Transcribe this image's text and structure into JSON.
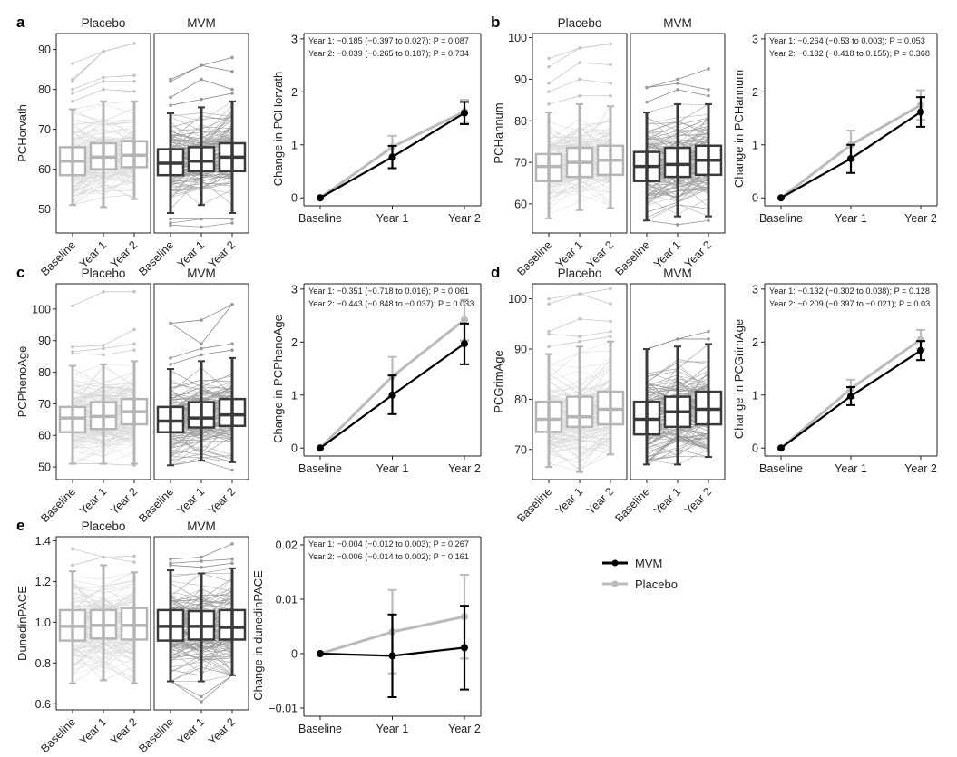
{
  "colors": {
    "mvm": "#000000",
    "placebo": "#bbbbbb",
    "mvm_box": "#3a3a3a",
    "placebo_box": "#b5b5b5"
  },
  "legend": [
    {
      "label": "MVM",
      "color": "#000000"
    },
    {
      "label": "Placebo",
      "color": "#bbbbbb"
    }
  ],
  "chart_data": [
    {
      "panel": "a",
      "type": "box",
      "ylabel": "PCHorvath",
      "groups": [
        "Placebo",
        "MVM"
      ],
      "categories": [
        "Baseline",
        "Year 1",
        "Year 2"
      ],
      "yticks": [
        50,
        60,
        70,
        80,
        90
      ],
      "ylim": [
        44,
        94
      ],
      "boxes": {
        "Placebo": [
          {
            "q1": 58.5,
            "median": 62,
            "q3": 65.5,
            "lo": 51,
            "hi": 75,
            "outliers_hi": [
              77,
              79,
              80,
              82,
              82.5,
              86.5
            ]
          },
          {
            "q1": 60,
            "median": 63,
            "q3": 66.5,
            "lo": 50.5,
            "hi": 77,
            "outliers_hi": [
              80,
              82,
              83,
              89.5
            ]
          },
          {
            "q1": 60.5,
            "median": 63.5,
            "q3": 67,
            "lo": 52.5,
            "hi": 77,
            "outliers_hi": [
              79.5,
              82,
              83.5,
              91.5
            ]
          }
        ],
        "MVM": [
          {
            "q1": 58.5,
            "median": 61.5,
            "q3": 65,
            "lo": 49,
            "hi": 74,
            "outliers_hi": [
              76,
              78,
              82,
              82.5
            ],
            "outliers_lo": [
              46,
              46.5,
              47.5
            ]
          },
          {
            "q1": 59.5,
            "median": 62,
            "q3": 65.5,
            "lo": 51,
            "hi": 75.5,
            "outliers_hi": [
              77.5,
              82.5,
              86
            ],
            "outliers_lo": [
              45.5,
              47.5
            ]
          },
          {
            "q1": 59.5,
            "median": 63,
            "q3": 66.5,
            "lo": 49,
            "hi": 77,
            "outliers_hi": [
              79,
              80,
              84.5,
              88
            ],
            "outliers_lo": [
              46.5,
              47.5
            ]
          }
        ]
      }
    },
    {
      "panel": "a",
      "type": "line",
      "ylabel": "Change in PCHorvath",
      "categories": [
        "Baseline",
        "Year 1",
        "Year 2"
      ],
      "yticks": [
        0,
        1,
        2,
        3
      ],
      "ylim": [
        -0.15,
        3.1
      ],
      "annotations": [
        "Year 1: −0.185 (−0.397 to 0.027); P = 0.087",
        "Year 2: −0.039 (−0.265 to 0.187); P = 0.734"
      ],
      "series": [
        {
          "name": "Placebo",
          "values": [
            0,
            0.96,
            1.63
          ],
          "err_lo": [
            0,
            0.75,
            1.41
          ],
          "err_hi": [
            0,
            1.17,
            1.85
          ]
        },
        {
          "name": "MVM",
          "values": [
            0,
            0.77,
            1.6
          ],
          "err_lo": [
            0,
            0.56,
            1.39
          ],
          "err_hi": [
            0,
            0.98,
            1.81
          ]
        }
      ]
    },
    {
      "panel": "b",
      "type": "box",
      "ylabel": "PCHannum",
      "groups": [
        "Placebo",
        "MVM"
      ],
      "categories": [
        "Baseline",
        "Year 1",
        "Year 2"
      ],
      "yticks": [
        60,
        70,
        80,
        90,
        100
      ],
      "ylim": [
        53,
        101
      ],
      "boxes": {
        "Placebo": [
          {
            "q1": 65.5,
            "median": 69,
            "q3": 72,
            "lo": 56.5,
            "hi": 82,
            "outliers_hi": [
              84,
              87,
              89,
              93,
              95
            ]
          },
          {
            "q1": 66.5,
            "median": 70,
            "q3": 73.5,
            "lo": 58.5,
            "hi": 84,
            "outliers_hi": [
              86,
              90,
              94,
              97.5
            ]
          },
          {
            "q1": 67,
            "median": 70.5,
            "q3": 74,
            "lo": 59,
            "hi": 83.5,
            "outliers_hi": [
              86,
              89,
              93.5,
              98.5
            ]
          }
        ],
        "MVM": [
          {
            "q1": 65.5,
            "median": 69,
            "q3": 72.5,
            "lo": 56,
            "hi": 82,
            "outliers_hi": [
              84.5,
              88
            ]
          },
          {
            "q1": 66.5,
            "median": 69.5,
            "q3": 73.5,
            "lo": 57,
            "hi": 84,
            "outliers_hi": [
              87.5,
              89,
              90
            ],
            "outliers_lo": [
              55
            ]
          },
          {
            "q1": 67,
            "median": 70.5,
            "q3": 74,
            "lo": 57,
            "hi": 84,
            "outliers_hi": [
              86,
              87.5,
              92.5
            ],
            "outliers_lo": [
              56
            ]
          }
        ]
      }
    },
    {
      "panel": "b",
      "type": "line",
      "ylabel": "Change in PCHannum",
      "categories": [
        "Baseline",
        "Year 1",
        "Year 2"
      ],
      "yticks": [
        0,
        1,
        2,
        3
      ],
      "ylim": [
        -0.15,
        3.1
      ],
      "annotations": [
        "Year 1: −0.264 (−0.53 to 0.003); P = 0.053",
        "Year 2: −0.132 (−0.418 to 0.155); P = 0.368"
      ],
      "series": [
        {
          "name": "Placebo",
          "values": [
            0,
            1.0,
            1.75
          ],
          "err_lo": [
            0,
            0.73,
            1.47
          ],
          "err_hi": [
            0,
            1.27,
            2.03
          ]
        },
        {
          "name": "MVM",
          "values": [
            0,
            0.74,
            1.62
          ],
          "err_lo": [
            0,
            0.47,
            1.34
          ],
          "err_hi": [
            0,
            1.0,
            1.9
          ]
        }
      ]
    },
    {
      "panel": "c",
      "type": "box",
      "ylabel": "PCPhenoAge",
      "groups": [
        "Placebo",
        "MVM"
      ],
      "categories": [
        "Baseline",
        "Year 1",
        "Year 2"
      ],
      "yticks": [
        50,
        60,
        70,
        80,
        90,
        100
      ],
      "ylim": [
        46,
        108
      ],
      "boxes": {
        "Placebo": [
          {
            "q1": 61,
            "median": 65.5,
            "q3": 69,
            "lo": 51,
            "hi": 82,
            "outliers_hi": [
              86,
              86.5,
              88,
              101
            ]
          },
          {
            "q1": 62,
            "median": 66,
            "q3": 70.5,
            "lo": 51,
            "hi": 82.5,
            "outliers_hi": [
              85.5,
              87.5,
              88.5,
              105.5
            ]
          },
          {
            "q1": 63.5,
            "median": 67.5,
            "q3": 71.5,
            "lo": 51,
            "hi": 83.5,
            "outliers_hi": [
              87,
              89,
              93.5,
              105.5
            ],
            "outliers_lo": [
              50.5
            ]
          }
        ],
        "MVM": [
          {
            "q1": 61,
            "median": 64.5,
            "q3": 69,
            "lo": 50.5,
            "hi": 81,
            "outliers_hi": [
              82.5,
              84.5,
              95.5
            ]
          },
          {
            "q1": 62.5,
            "median": 65.5,
            "q3": 70.5,
            "lo": 52,
            "hi": 83.5,
            "outliers_hi": [
              85.5,
              87.5,
              89,
              96.5
            ]
          },
          {
            "q1": 63,
            "median": 66.5,
            "q3": 71.5,
            "lo": 51.5,
            "hi": 84.5,
            "outliers_hi": [
              87,
              89,
              101.5
            ],
            "outliers_lo": [
              49
            ]
          }
        ]
      }
    },
    {
      "panel": "c",
      "type": "line",
      "ylabel": "Change in PCPhenoAge",
      "categories": [
        "Baseline",
        "Year 1",
        "Year 2"
      ],
      "yticks": [
        0,
        1,
        2,
        3
      ],
      "ylim": [
        -0.15,
        3.1
      ],
      "annotations": [
        "Year 1: −0.351 (−0.718 to 0.016); P = 0.061",
        "Year 2: −0.443 (−0.848 to −0.037); P = 0.033"
      ],
      "series": [
        {
          "name": "Placebo",
          "values": [
            0,
            1.35,
            2.42
          ],
          "err_lo": [
            0,
            0.98,
            2.03
          ],
          "err_hi": [
            0,
            1.72,
            2.8
          ]
        },
        {
          "name": "MVM",
          "values": [
            0,
            1.0,
            1.97
          ],
          "err_lo": [
            0,
            0.64,
            1.58
          ],
          "err_hi": [
            0,
            1.37,
            2.35
          ]
        }
      ]
    },
    {
      "panel": "d",
      "type": "box",
      "ylabel": "PCGrimAge",
      "groups": [
        "Placebo",
        "MVM"
      ],
      "categories": [
        "Baseline",
        "Year 1",
        "Year 2"
      ],
      "yticks": [
        70,
        80,
        90,
        100
      ],
      "ylim": [
        64,
        103
      ],
      "boxes": {
        "Placebo": [
          {
            "q1": 73.5,
            "median": 76,
            "q3": 79.5,
            "lo": 66.5,
            "hi": 89,
            "outliers_hi": [
              90.5,
              93,
              93.5,
              99,
              100
            ]
          },
          {
            "q1": 74.5,
            "median": 76.5,
            "q3": 80.5,
            "lo": 65.5,
            "hi": 90.5,
            "outliers_hi": [
              91.5,
              92.5,
              96,
              101
            ]
          },
          {
            "q1": 75,
            "median": 78,
            "q3": 81.5,
            "lo": 69,
            "hi": 91.5,
            "outliers_hi": [
              92.5,
              93.5,
              95.5,
              99,
              102
            ]
          }
        ],
        "MVM": [
          {
            "q1": 73,
            "median": 76,
            "q3": 79.5,
            "lo": 67,
            "hi": 90,
            "outliers_hi": []
          },
          {
            "q1": 74.5,
            "median": 77.5,
            "q3": 80.5,
            "lo": 67,
            "hi": 90.5,
            "outliers_hi": [
              92
            ]
          },
          {
            "q1": 75,
            "median": 78,
            "q3": 81.5,
            "lo": 68.5,
            "hi": 91,
            "outliers_hi": [
              92,
              93.5
            ]
          }
        ]
      }
    },
    {
      "panel": "d",
      "type": "line",
      "ylabel": "Change in PCGrimAge",
      "categories": [
        "Baseline",
        "Year 1",
        "Year 2"
      ],
      "yticks": [
        0,
        1,
        2,
        3
      ],
      "ylim": [
        -0.15,
        3.1
      ],
      "annotations": [
        "Year 1: −0.132 (−0.302 to 0.038); P = 0.128",
        "Year 2: −0.209 (−0.397 to −0.021); P = 0.03"
      ],
      "series": [
        {
          "name": "Placebo",
          "values": [
            0,
            1.12,
            2.05
          ],
          "err_lo": [
            0,
            0.95,
            1.87
          ],
          "err_hi": [
            0,
            1.29,
            2.23
          ]
        },
        {
          "name": "MVM",
          "values": [
            0,
            0.98,
            1.84
          ],
          "err_lo": [
            0,
            0.81,
            1.66
          ],
          "err_hi": [
            0,
            1.15,
            2.02
          ]
        }
      ]
    },
    {
      "panel": "e",
      "type": "box",
      "ylabel": "DunedinPACE",
      "groups": [
        "Placebo",
        "MVM"
      ],
      "categories": [
        "Baseline",
        "Year 1",
        "Year 2"
      ],
      "yticks": [
        0.6,
        0.8,
        1.0,
        1.2,
        1.4
      ],
      "ytick_labels": [
        "0.6",
        "0.8",
        "1.0",
        "1.2",
        "1.4"
      ],
      "ylim": [
        0.57,
        1.42
      ],
      "boxes": {
        "Placebo": [
          {
            "q1": 0.91,
            "median": 0.98,
            "q3": 1.06,
            "lo": 0.7,
            "hi": 1.25,
            "outliers_hi": [
              1.28,
              1.36
            ]
          },
          {
            "q1": 0.92,
            "median": 0.985,
            "q3": 1.06,
            "lo": 0.715,
            "hi": 1.28,
            "outliers_hi": [
              1.32
            ]
          },
          {
            "q1": 0.915,
            "median": 0.985,
            "q3": 1.07,
            "lo": 0.7,
            "hi": 1.245,
            "outliers_hi": [
              1.295,
              1.325
            ]
          }
        ],
        "MVM": [
          {
            "q1": 0.91,
            "median": 0.98,
            "q3": 1.06,
            "lo": 0.71,
            "hi": 1.255,
            "outliers_hi": [
              1.28,
              1.29,
              1.31
            ]
          },
          {
            "q1": 0.915,
            "median": 0.98,
            "q3": 1.055,
            "lo": 0.71,
            "hi": 1.24,
            "outliers_hi": [
              1.27,
              1.3,
              1.32
            ],
            "outliers_lo": [
              0.61,
              0.635
            ]
          },
          {
            "q1": 0.915,
            "median": 0.975,
            "q3": 1.06,
            "lo": 0.74,
            "hi": 1.265,
            "outliers_hi": [
              1.29,
              1.31,
              1.385
            ]
          }
        ]
      }
    },
    {
      "panel": "e",
      "type": "line",
      "ylabel": "Change in dunedinPACE",
      "categories": [
        "Baseline",
        "Year 1",
        "Year 2"
      ],
      "yticks": [
        -0.01,
        0,
        0.01,
        0.02
      ],
      "ytick_labels": [
        "−0.01",
        "0",
        "0.01",
        "0.02"
      ],
      "ylim": [
        -0.0115,
        0.0215
      ],
      "annotations": [
        "Year 1: −0.004 (−0.012 to 0.003); P = 0.267",
        "Year 2: −0.006 (−0.014 to 0.002); P = 0.161"
      ],
      "series": [
        {
          "name": "Placebo",
          "values": [
            0,
            0.004,
            0.0068
          ],
          "err_lo": [
            0,
            -0.0036,
            -0.0009
          ],
          "err_hi": [
            0,
            0.0117,
            0.0145
          ]
        },
        {
          "name": "MVM",
          "values": [
            0,
            -0.0004,
            0.0011
          ],
          "err_lo": [
            0,
            -0.008,
            -0.0066
          ],
          "err_hi": [
            0,
            0.0072,
            0.0088
          ]
        }
      ]
    }
  ]
}
